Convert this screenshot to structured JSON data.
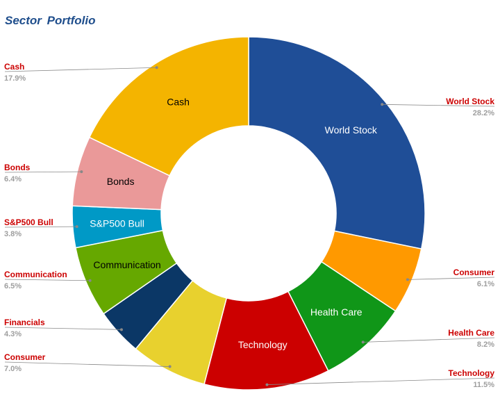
{
  "chart_data": {
    "type": "pie",
    "title": "Sector Portfolio",
    "donut": true,
    "slices": [
      {
        "name": "World Stock",
        "value": 28.2,
        "pct_label": "28.2%",
        "color": "#1f4e97",
        "inner_text_color": "#ffffff",
        "side": "right"
      },
      {
        "name": "Consumer",
        "value": 6.1,
        "pct_label": "6.1%",
        "color": "#ff9900",
        "inner_text_color": "",
        "side": "right"
      },
      {
        "name": "Health Care",
        "value": 8.2,
        "pct_label": "8.2%",
        "color": "#109618",
        "inner_text_color": "#ffffff",
        "side": "right"
      },
      {
        "name": "Technology",
        "value": 11.5,
        "pct_label": "11.5%",
        "color": "#cc0000",
        "inner_text_color": "#ffffff",
        "side": "right"
      },
      {
        "name": "Consumer",
        "value": 7.0,
        "pct_label": "7.0%",
        "color": "#e8d12e",
        "inner_text_color": "",
        "side": "left"
      },
      {
        "name": "Financials",
        "value": 4.3,
        "pct_label": "4.3%",
        "color": "#0b3766",
        "inner_text_color": "",
        "side": "left"
      },
      {
        "name": "Communication",
        "value": 6.5,
        "pct_label": "6.5%",
        "color": "#66a800",
        "inner_text_color": "#000000",
        "side": "left"
      },
      {
        "name": "S&P500 Bull",
        "value": 3.8,
        "pct_label": "3.8%",
        "color": "#0099c6",
        "inner_text_color": "#ffffff",
        "side": "left"
      },
      {
        "name": "Bonds",
        "value": 6.4,
        "pct_label": "6.4%",
        "color": "#ea9999",
        "inner_text_color": "#000000",
        "side": "left"
      },
      {
        "name": "Cash",
        "value": 17.9,
        "pct_label": "17.9%",
        "color": "#f4b400",
        "inner_text_color": "#000000",
        "side": "left"
      }
    ],
    "legend": "outside-labels",
    "label_name_color": "#cc0000",
    "label_pct_color": "#9e9e9e",
    "leader_line_color": "#888888"
  }
}
